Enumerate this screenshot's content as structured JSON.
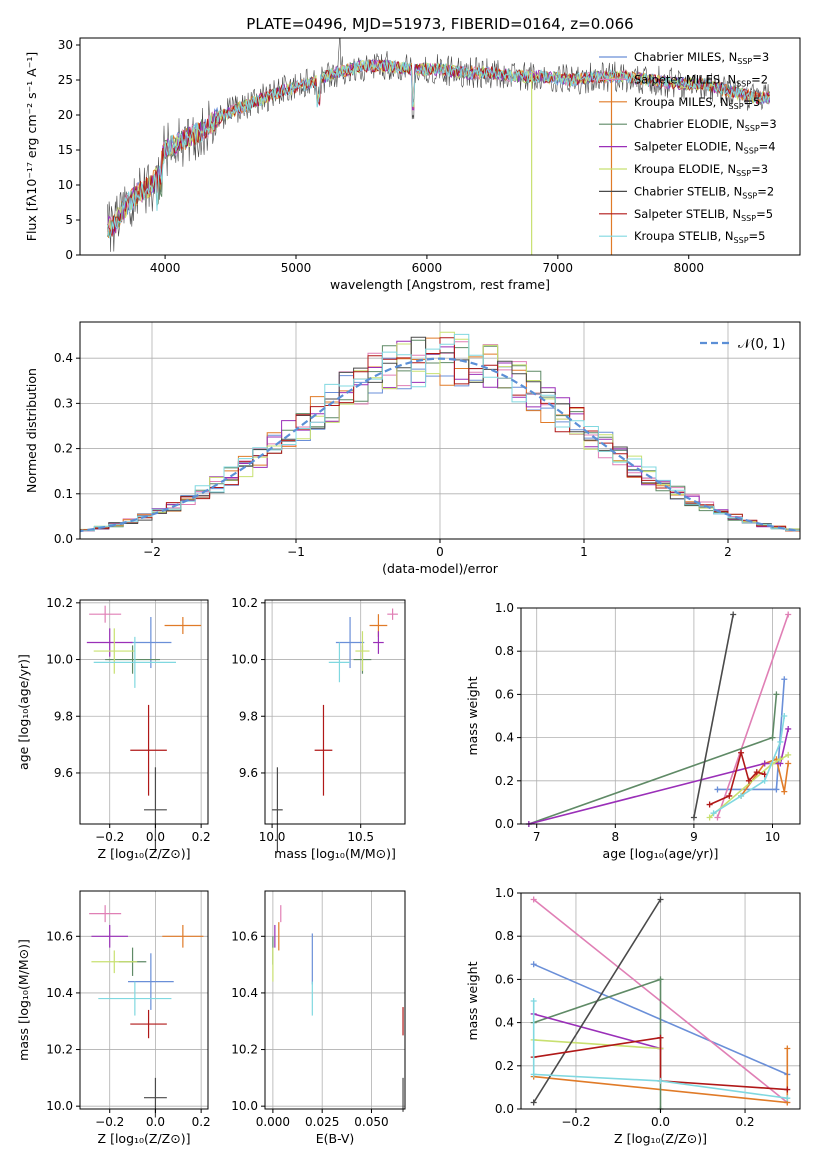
{
  "figure": {
    "title": "PLATE=0496, MJD=51973, FIBERID=0164, z=0.066"
  },
  "chart_data": [
    {
      "id": "spectrum",
      "type": "line",
      "xlabel": "wavelength [Angstrom, rest frame]",
      "ylabel": "Flux [fλ10⁻¹⁷ erg cm⁻² s⁻¹ A⁻¹]",
      "xlim": [
        3350,
        8850
      ],
      "ylim": [
        0,
        31
      ],
      "xticks": [
        4000,
        5000,
        6000,
        7000,
        8000
      ],
      "yticks": [
        0,
        5,
        10,
        15,
        20,
        25,
        30
      ],
      "grid": false,
      "legend_position": "top-right",
      "continuum": {
        "x": [
          3600,
          3700,
          3800,
          3900,
          4000,
          4100,
          4200,
          4300,
          4400,
          4500,
          4700,
          4900,
          5100,
          5300,
          5500,
          5700,
          5900,
          6100,
          6300,
          6500,
          6700,
          6900,
          7100,
          7300,
          7500,
          7700,
          7900,
          8100,
          8300,
          8500,
          8600
        ],
        "y": [
          4,
          7,
          9,
          10,
          15,
          16,
          17,
          18,
          19.5,
          20.5,
          22,
          23.5,
          24.5,
          26,
          27,
          27,
          26.5,
          26.5,
          26,
          26,
          25.5,
          25.5,
          25,
          25.5,
          25.5,
          25,
          24.5,
          24.5,
          23.5,
          22.5,
          22.5
        ]
      },
      "series": [
        {
          "label": "Chabrier MILES, N",
          "sub": "SSP",
          "count": "=3",
          "color": "#6a8fd8"
        },
        {
          "label": "Salpeter MILES, N",
          "sub": "SSP",
          "count": "=2",
          "color": "#e07fb5"
        },
        {
          "label": "Kroupa MILES, N",
          "sub": "SSP",
          "count": "=5",
          "color": "#e07b28"
        },
        {
          "label": "Chabrier ELODIE, N",
          "sub": "SSP",
          "count": "=3",
          "color": "#5f8a66"
        },
        {
          "label": "Salpeter ELODIE, N",
          "sub": "SSP",
          "count": "=4",
          "color": "#9a2fb8"
        },
        {
          "label": "Kroupa ELODIE, N",
          "sub": "SSP",
          "count": "=3",
          "color": "#c8e070"
        },
        {
          "label": "Chabrier STELIB, N",
          "sub": "SSP",
          "count": "=2",
          "color": "#4a4a4a"
        },
        {
          "label": "Salpeter STELIB, N",
          "sub": "SSP",
          "count": "=5",
          "color": "#b01818"
        },
        {
          "label": "Kroupa STELIB, N",
          "sub": "SSP",
          "count": "=5",
          "color": "#80d8e0"
        }
      ]
    },
    {
      "id": "residuals",
      "type": "histogram",
      "xlabel": "(data-model)/error",
      "ylabel": "Normed distribution",
      "xlim": [
        -2.5,
        2.5
      ],
      "ylim": [
        0,
        0.48
      ],
      "xticks": [
        -2,
        -1,
        0,
        1,
        2
      ],
      "xtick_labels": [
        "−2",
        "−1",
        "0",
        "1",
        "2"
      ],
      "yticks": [
        0.0,
        0.1,
        0.2,
        0.3,
        0.4
      ],
      "grid": true,
      "legend_position": "top-right",
      "legend_label": "𝒩(0, 1)",
      "gaussian": {
        "mean": 0,
        "sigma": 1,
        "color": "#5b8fd6"
      },
      "bin_width": 0.1
    },
    {
      "id": "age-vs-Z",
      "type": "errorbar",
      "xlabel": "Z [log₁₀(Z/Z⊙)]",
      "ylabel": "age  [log₁₀(age/yr)]",
      "xlim": [
        -0.33,
        0.23
      ],
      "ylim": [
        9.42,
        10.21
      ],
      "xticks": [
        -0.2,
        0.0,
        0.2
      ],
      "xtick_labels": [
        "−0.2",
        "0.0",
        "0.2"
      ],
      "yticks": [
        9.6,
        9.8,
        10.0,
        10.2
      ],
      "grid": true,
      "points": [
        {
          "x": -0.02,
          "y": 10.06,
          "xerr": 0.09,
          "yerr": 0.09,
          "color": "#6a8fd8"
        },
        {
          "x": -0.22,
          "y": 10.16,
          "xerr": 0.07,
          "yerr": 0.03,
          "color": "#e07fb5"
        },
        {
          "x": 0.12,
          "y": 10.12,
          "xerr": 0.08,
          "yerr": 0.03,
          "color": "#e07b28"
        },
        {
          "x": -0.1,
          "y": 10.0,
          "xerr": 0.12,
          "yerr": 0.05,
          "color": "#5f8a66"
        },
        {
          "x": -0.2,
          "y": 10.06,
          "xerr": 0.1,
          "yerr": 0.05,
          "color": "#9a2fb8"
        },
        {
          "x": -0.18,
          "y": 10.03,
          "xerr": 0.09,
          "yerr": 0.08,
          "color": "#c8e070"
        },
        {
          "x": 0.0,
          "y": 9.47,
          "xerr": 0.05,
          "yerr": 0.15,
          "color": "#4a4a4a"
        },
        {
          "x": -0.03,
          "y": 9.68,
          "xerr": 0.08,
          "yerr": 0.16,
          "color": "#b01818"
        },
        {
          "x": -0.09,
          "y": 9.99,
          "xerr": 0.18,
          "yerr": 0.09,
          "color": "#80d8e0"
        }
      ]
    },
    {
      "id": "age-vs-mass",
      "type": "errorbar",
      "xlabel": "mass [log₁₀(M/M⊙)]",
      "ylabel": "",
      "xlim": [
        9.96,
        10.75
      ],
      "ylim": [
        9.42,
        10.21
      ],
      "xticks": [
        10.0,
        10.5
      ],
      "xtick_labels": [
        "10.0",
        "10.5"
      ],
      "yticks": [
        9.6,
        9.8,
        10.0,
        10.2
      ],
      "grid": true,
      "points": [
        {
          "x": 10.44,
          "y": 10.06,
          "xerr": 0.08,
          "yerr": 0.09,
          "color": "#6a8fd8"
        },
        {
          "x": 10.68,
          "y": 10.16,
          "xerr": 0.03,
          "yerr": 0.02,
          "color": "#e07fb5"
        },
        {
          "x": 10.6,
          "y": 10.12,
          "xerr": 0.05,
          "yerr": 0.04,
          "color": "#e07b28"
        },
        {
          "x": 10.51,
          "y": 10.0,
          "xerr": 0.05,
          "yerr": 0.05,
          "color": "#5f8a66"
        },
        {
          "x": 10.6,
          "y": 10.06,
          "xerr": 0.03,
          "yerr": 0.04,
          "color": "#9a2fb8"
        },
        {
          "x": 10.51,
          "y": 10.03,
          "xerr": 0.04,
          "yerr": 0.07,
          "color": "#c8e070"
        },
        {
          "x": 10.03,
          "y": 9.47,
          "xerr": 0.03,
          "yerr": 0.15,
          "color": "#4a4a4a"
        },
        {
          "x": 10.29,
          "y": 9.68,
          "xerr": 0.05,
          "yerr": 0.16,
          "color": "#b01818"
        },
        {
          "x": 10.38,
          "y": 9.99,
          "xerr": 0.06,
          "yerr": 0.07,
          "color": "#80d8e0"
        }
      ]
    },
    {
      "id": "weight-vs-age",
      "type": "line",
      "xlabel": "age  [log₁₀(age/yr)]",
      "ylabel": "mass weight",
      "xlim": [
        6.8,
        10.35
      ],
      "ylim": [
        0,
        1
      ],
      "xticks": [
        7,
        8,
        9,
        10
      ],
      "xtick_labels": [
        "7",
        "8",
        "9",
        "10"
      ],
      "yticks": [
        0.0,
        0.2,
        0.4,
        0.6,
        0.8,
        1.0
      ],
      "grid": true,
      "series": [
        {
          "color": "#6a8fd8",
          "x": [
            9.3,
            10.05,
            10.15
          ],
          "y": [
            0.16,
            0.16,
            0.67
          ]
        },
        {
          "color": "#e07fb5",
          "x": [
            9.3,
            10.2
          ],
          "y": [
            0.03,
            0.97
          ]
        },
        {
          "color": "#e07b28",
          "x": [
            9.6,
            9.9,
            10.05,
            10.15,
            10.2
          ],
          "y": [
            0.13,
            0.28,
            0.3,
            0.15,
            0.28
          ]
        },
        {
          "color": "#5f8a66",
          "x": [
            6.9,
            10.0,
            10.05
          ],
          "y": [
            0.0,
            0.4,
            0.6
          ]
        },
        {
          "color": "#9a2fb8",
          "x": [
            6.9,
            9.9,
            10.1,
            10.2
          ],
          "y": [
            0.0,
            0.28,
            0.28,
            0.44
          ]
        },
        {
          "color": "#c8e070",
          "x": [
            9.2,
            10.0,
            10.1,
            10.2
          ],
          "y": [
            0.03,
            0.28,
            0.3,
            0.32
          ]
        },
        {
          "color": "#4a4a4a",
          "x": [
            9.0,
            9.5
          ],
          "y": [
            0.03,
            0.97
          ]
        },
        {
          "color": "#b01818",
          "x": [
            9.2,
            9.45,
            9.6,
            9.7,
            9.8,
            9.9
          ],
          "y": [
            0.09,
            0.13,
            0.33,
            0.2,
            0.24,
            0.23
          ]
        },
        {
          "color": "#80d8e0",
          "x": [
            9.25,
            9.6,
            9.9,
            10.1,
            10.15
          ],
          "y": [
            0.05,
            0.13,
            0.2,
            0.38,
            0.5
          ]
        }
      ]
    },
    {
      "id": "mass-vs-Z",
      "type": "errorbar",
      "xlabel": "Z [log₁₀(Z/Z⊙)]",
      "ylabel": "mass [log₁₀(M/M⊙)]",
      "xlim": [
        -0.33,
        0.23
      ],
      "ylim": [
        9.99,
        10.76
      ],
      "xticks": [
        -0.2,
        0.0,
        0.2
      ],
      "xtick_labels": [
        "−0.2",
        "0.0",
        "0.2"
      ],
      "yticks": [
        10.0,
        10.2,
        10.4,
        10.6
      ],
      "grid": true,
      "points": [
        {
          "x": -0.02,
          "y": 10.44,
          "xerr": 0.1,
          "yerr": 0.1,
          "color": "#6a8fd8"
        },
        {
          "x": -0.22,
          "y": 10.68,
          "xerr": 0.07,
          "yerr": 0.03,
          "color": "#e07fb5"
        },
        {
          "x": 0.12,
          "y": 10.6,
          "xerr": 0.09,
          "yerr": 0.04,
          "color": "#e07b28"
        },
        {
          "x": -0.1,
          "y": 10.51,
          "xerr": 0.06,
          "yerr": 0.05,
          "color": "#5f8a66"
        },
        {
          "x": -0.2,
          "y": 10.6,
          "xerr": 0.08,
          "yerr": 0.04,
          "color": "#9a2fb8"
        },
        {
          "x": -0.18,
          "y": 10.51,
          "xerr": 0.1,
          "yerr": 0.04,
          "color": "#c8e070"
        },
        {
          "x": 0.0,
          "y": 10.03,
          "xerr": 0.05,
          "yerr": 0.07,
          "color": "#4a4a4a"
        },
        {
          "x": -0.03,
          "y": 10.29,
          "xerr": 0.08,
          "yerr": 0.05,
          "color": "#b01818"
        },
        {
          "x": -0.09,
          "y": 10.38,
          "xerr": 0.16,
          "yerr": 0.06,
          "color": "#80d8e0"
        }
      ]
    },
    {
      "id": "mass-vs-EBV",
      "type": "errorbar",
      "xlabel": "E(B-V)",
      "ylabel": "",
      "xlim": [
        -0.004,
        0.067
      ],
      "ylim": [
        9.99,
        10.76
      ],
      "xticks": [
        0.0,
        0.025,
        0.05
      ],
      "xtick_labels": [
        "0.000",
        "0.025",
        "0.050"
      ],
      "yticks": [
        10.0,
        10.2,
        10.4,
        10.6
      ],
      "grid": true,
      "points": [
        {
          "x": 0.02,
          "y": 10.52,
          "xerr": 0,
          "yerr": 0.09,
          "color": "#6a8fd8"
        },
        {
          "x": 0.004,
          "y": 10.68,
          "xerr": 0,
          "yerr": 0.03,
          "color": "#e07fb5"
        },
        {
          "x": 0.003,
          "y": 10.6,
          "xerr": 0,
          "yerr": 0.05,
          "color": "#e07b28"
        },
        {
          "x": 0.0,
          "y": 10.55,
          "xerr": 0,
          "yerr": 0.05,
          "color": "#5f8a66"
        },
        {
          "x": 0.001,
          "y": 10.6,
          "xerr": 0,
          "yerr": 0.04,
          "color": "#9a2fb8"
        },
        {
          "x": 0.0,
          "y": 10.5,
          "xerr": 0,
          "yerr": 0.06,
          "color": "#c8e070"
        },
        {
          "x": 0.066,
          "y": 10.04,
          "xerr": 0,
          "yerr": 0.06,
          "color": "#4a4a4a"
        },
        {
          "x": 0.066,
          "y": 10.3,
          "xerr": 0,
          "yerr": 0.05,
          "color": "#b01818"
        },
        {
          "x": 0.02,
          "y": 10.38,
          "xerr": 0,
          "yerr": 0.06,
          "color": "#80d8e0"
        }
      ]
    },
    {
      "id": "weight-vs-Z",
      "type": "line",
      "xlabel": "Z [log₁₀(Z/Z⊙)]",
      "ylabel": "mass weight",
      "xlim": [
        -0.33,
        0.33
      ],
      "ylim": [
        0,
        1
      ],
      "xticks": [
        -0.2,
        0.0,
        0.2
      ],
      "xtick_labels": [
        "−0.2",
        "0.0",
        "0.2"
      ],
      "yticks": [
        0.0,
        0.2,
        0.4,
        0.6,
        0.8,
        1.0
      ],
      "grid": true,
      "series": [
        {
          "color": "#6a8fd8",
          "x": [
            -0.3,
            0.3
          ],
          "y": [
            0.67,
            0.16
          ]
        },
        {
          "color": "#e07fb5",
          "x": [
            -0.3,
            0.3
          ],
          "y": [
            0.97,
            0.03
          ]
        },
        {
          "color": "#e07b28",
          "x": [
            -0.3,
            0.3,
            0.3
          ],
          "y": [
            0.15,
            0.03,
            0.28
          ]
        },
        {
          "color": "#5f8a66",
          "x": [
            -0.3,
            0.0,
            0.0
          ],
          "y": [
            0.4,
            0.6,
            0.0
          ]
        },
        {
          "color": "#9a2fb8",
          "x": [
            -0.3,
            0.0,
            0.0
          ],
          "y": [
            0.44,
            0.28,
            0.28
          ]
        },
        {
          "color": "#c8e070",
          "x": [
            -0.3,
            0.0
          ],
          "y": [
            0.32,
            0.28
          ]
        },
        {
          "color": "#4a4a4a",
          "x": [
            -0.3,
            0.0
          ],
          "y": [
            0.03,
            0.97
          ]
        },
        {
          "color": "#b01818",
          "x": [
            -0.3,
            0.0,
            0.0,
            0.3
          ],
          "y": [
            0.24,
            0.33,
            0.13,
            0.09
          ]
        },
        {
          "color": "#80d8e0",
          "x": [
            -0.3,
            -0.3,
            0.0,
            0.3
          ],
          "y": [
            0.5,
            0.16,
            0.13,
            0.05
          ]
        }
      ]
    }
  ]
}
